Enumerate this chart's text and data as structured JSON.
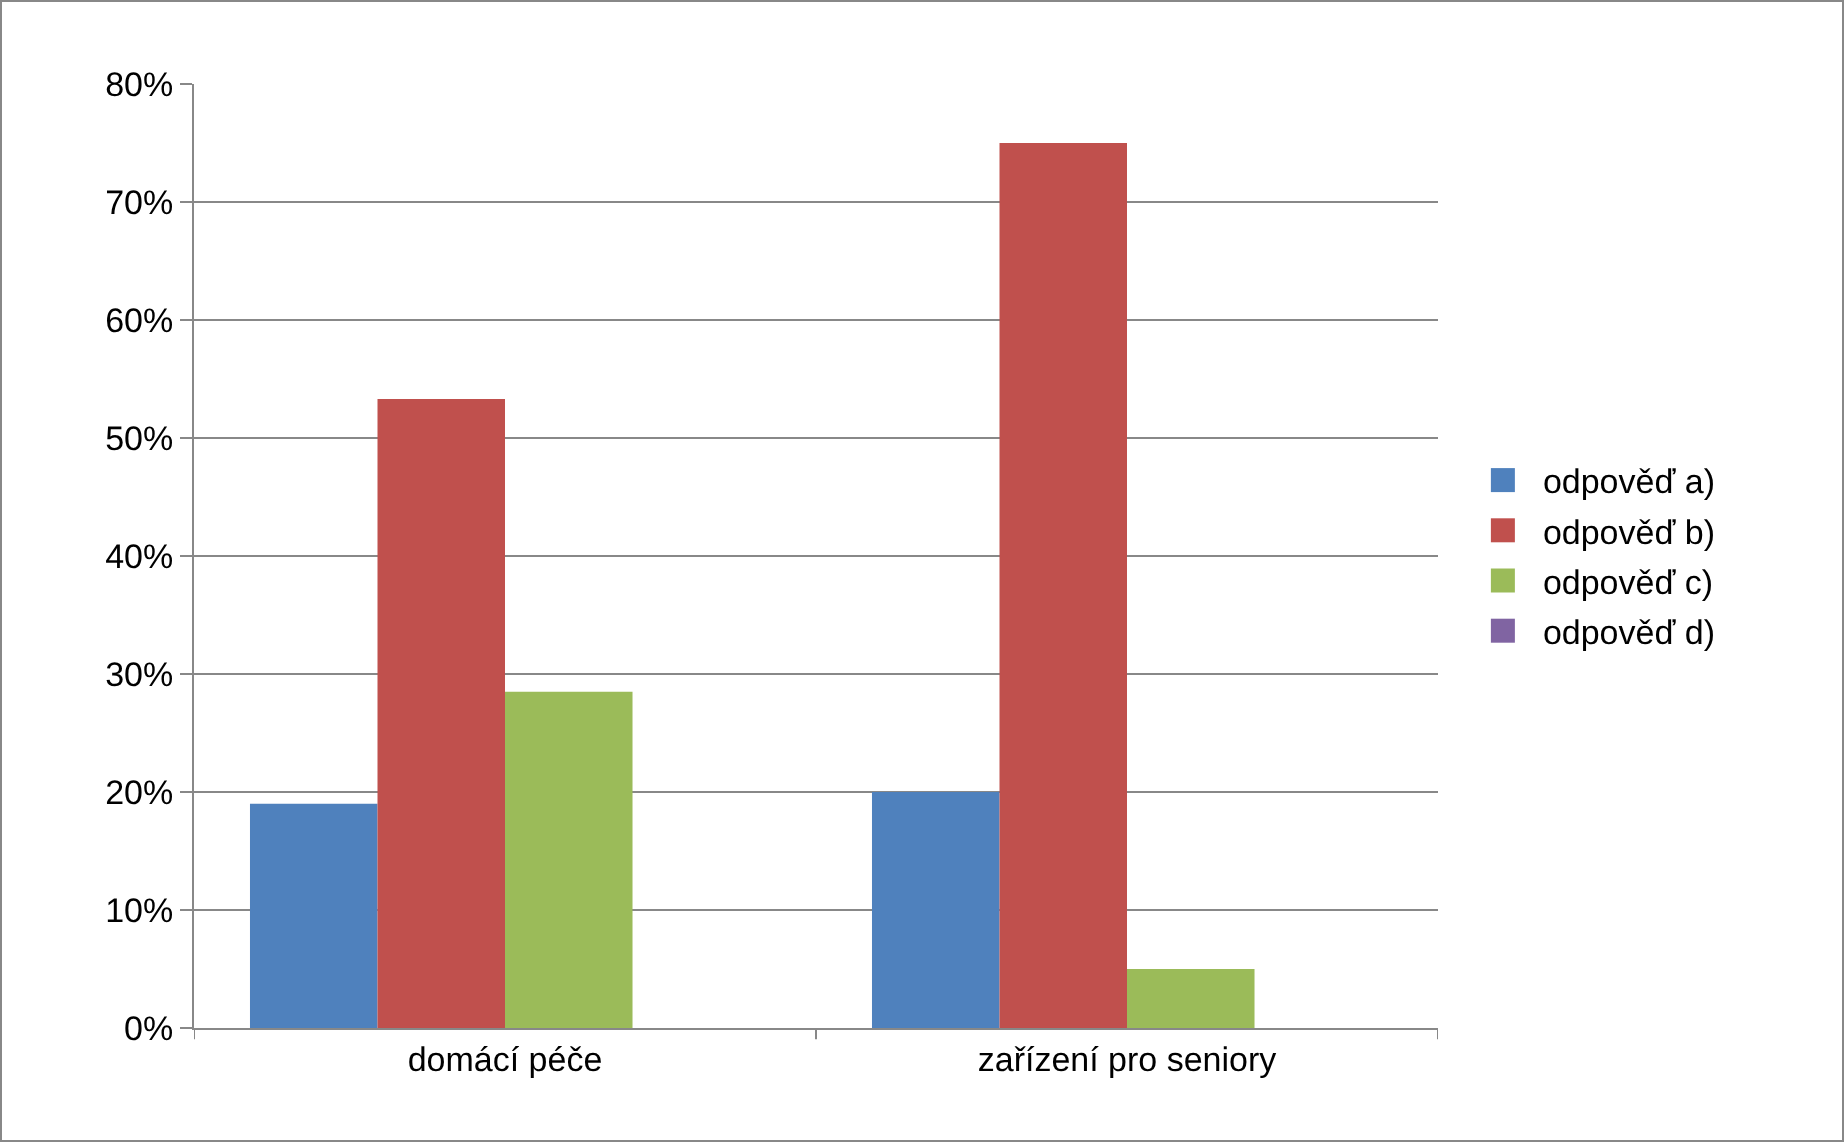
{
  "chart_data": {
    "type": "bar",
    "categories": [
      "domácí péče",
      "zařízení pro seniory"
    ],
    "series": [
      {
        "name": "odpověď a)",
        "color": "#4f81bd",
        "values": [
          19,
          20
        ]
      },
      {
        "name": "odpověď b)",
        "color": "#c0504d",
        "values": [
          53.3,
          75
        ]
      },
      {
        "name": "odpověď c)",
        "color": "#9bbb59",
        "values": [
          28.5,
          5
        ]
      },
      {
        "name": "odpověď d)",
        "color": "#8064a2",
        "values": [
          0,
          0
        ]
      }
    ],
    "ylim": [
      0,
      80
    ],
    "yticks": [
      {
        "value": 0,
        "label": "0%"
      },
      {
        "value": 10,
        "label": "10%"
      },
      {
        "value": 20,
        "label": "20%"
      },
      {
        "value": 30,
        "label": "30%"
      },
      {
        "value": 40,
        "label": "40%"
      },
      {
        "value": 50,
        "label": "50%"
      },
      {
        "value": 60,
        "label": "60%"
      },
      {
        "value": 70,
        "label": "70%"
      },
      {
        "value": 80,
        "label": "80%"
      }
    ],
    "grid": "y",
    "legend": "right"
  }
}
